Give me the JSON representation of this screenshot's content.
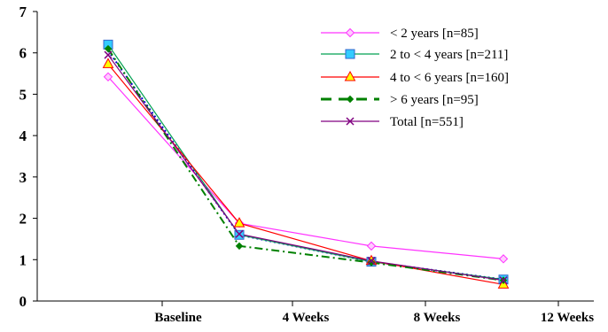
{
  "chart_data": {
    "type": "line",
    "x_tick_labels": [
      "Baseline",
      "4 Weeks",
      "8 Weeks",
      "12 Weeks"
    ],
    "ylim": [
      0,
      7
    ],
    "y_ticks": [
      "0",
      "1",
      "2",
      "3",
      "4",
      "5",
      "6",
      "7"
    ],
    "grid": false,
    "legend_position": "top-right",
    "series": [
      {
        "name": "< 2 years [n=85]",
        "color": "#ff33ff",
        "marker": "diamond",
        "dash": "solid",
        "values": [
          5.42,
          1.88,
          1.33,
          1.02
        ]
      },
      {
        "name": "2 to < 4 years [n=211]",
        "color": "#00a050",
        "marker": "square",
        "marker_fill": "#33ccff",
        "dash": "solid",
        "values": [
          6.2,
          1.6,
          0.95,
          0.52
        ]
      },
      {
        "name": "4 to < 6 years [n=160]",
        "color": "#ff0000",
        "marker": "triangle",
        "marker_fill": "#ffff00",
        "dash": "solid",
        "values": [
          5.73,
          1.88,
          0.97,
          0.4
        ]
      },
      {
        "name": "> 6 years [n=95]",
        "color": "#008000",
        "marker": "small-diamond",
        "dash": "dashdot",
        "values": [
          6.1,
          1.33,
          0.93,
          0.5
        ]
      },
      {
        "name": "Total [n=551]",
        "color": "#800080",
        "marker": "x",
        "dash": "solid",
        "values": [
          5.95,
          1.62,
          0.97,
          0.5
        ]
      }
    ],
    "extra_dotted_line": {
      "color": "#0000cc",
      "values": [
        6.05,
        1.6,
        0.95,
        0.52
      ]
    }
  }
}
